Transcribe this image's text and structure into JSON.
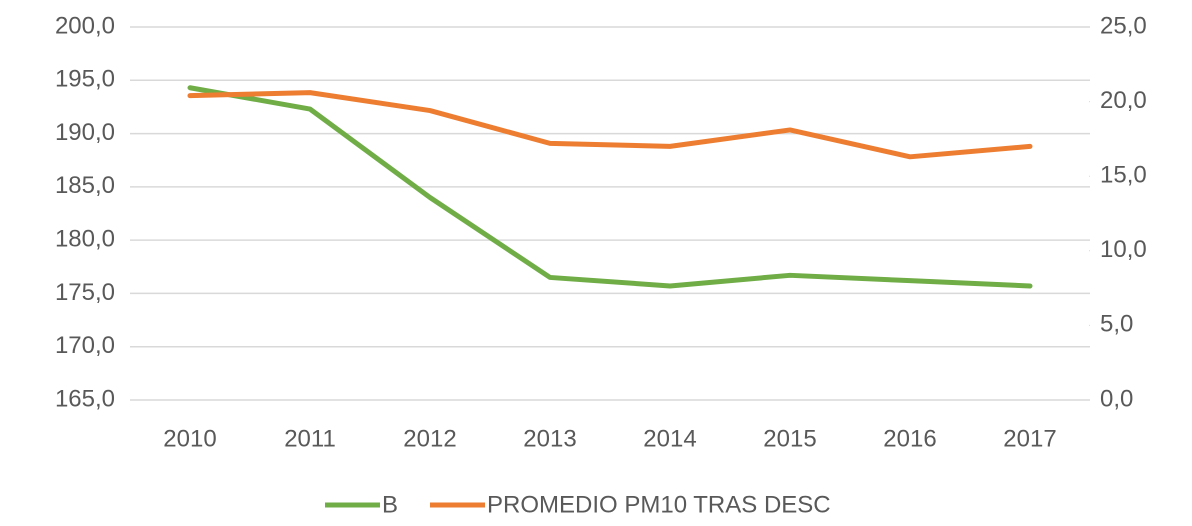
{
  "chart_data": {
    "type": "line",
    "categories": [
      "2010",
      "2011",
      "2012",
      "2013",
      "2014",
      "2015",
      "2016",
      "2017"
    ],
    "series": [
      {
        "name": "B",
        "color": "#70ad47",
        "values": [
          194.3,
          192.3,
          184.0,
          176.5,
          175.7,
          176.7,
          176.2,
          175.7
        ]
      },
      {
        "name": "PROMEDIO PM10 TRAS DESC",
        "color": "#ed7d31",
        "axis": "y2",
        "values": [
          20.4,
          20.6,
          19.4,
          17.2,
          17.0,
          18.1,
          16.3,
          17.0
        ]
      }
    ],
    "ylim": [
      165,
      200
    ],
    "yticks": [
      {
        "value": 165,
        "label": "165,0"
      },
      {
        "value": 170,
        "label": "170,0"
      },
      {
        "value": 175,
        "label": "175,0"
      },
      {
        "value": 180,
        "label": "180,0"
      },
      {
        "value": 185,
        "label": "185,0"
      },
      {
        "value": 190,
        "label": "190,0"
      },
      {
        "value": 195,
        "label": "195,0"
      },
      {
        "value": 200,
        "label": "200,0"
      }
    ],
    "y2lim": [
      0,
      25
    ],
    "y2ticks": [
      {
        "value": 0,
        "label": "0,0"
      },
      {
        "value": 5,
        "label": "5,0"
      },
      {
        "value": 10,
        "label": "10,0"
      },
      {
        "value": 15,
        "label": "15,0"
      },
      {
        "value": 20,
        "label": "20,0"
      },
      {
        "value": 25,
        "label": "25,0"
      }
    ],
    "grid": true,
    "legend": "bottom"
  }
}
